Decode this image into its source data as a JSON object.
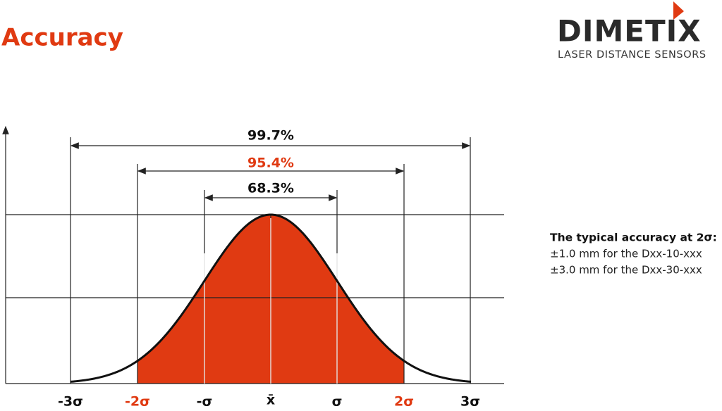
{
  "header": {
    "title": "Accuracy"
  },
  "logo": {
    "name": "DIMETIX",
    "tagline": "LASER DISTANCE SENSORS"
  },
  "diagram": {
    "ranges": [
      "99.7%",
      "95.4%",
      "68.3%"
    ],
    "x_labels": [
      "-3σ",
      "-2σ",
      "-σ",
      "x̄",
      "σ",
      "2σ",
      "3σ"
    ]
  },
  "note": {
    "heading": "The typical accuracy at 2σ:",
    "lines": [
      "±1.0 mm for the Dxx-10-xxx",
      "±3.0 mm for the Dxx-30-xxx"
    ]
  }
}
